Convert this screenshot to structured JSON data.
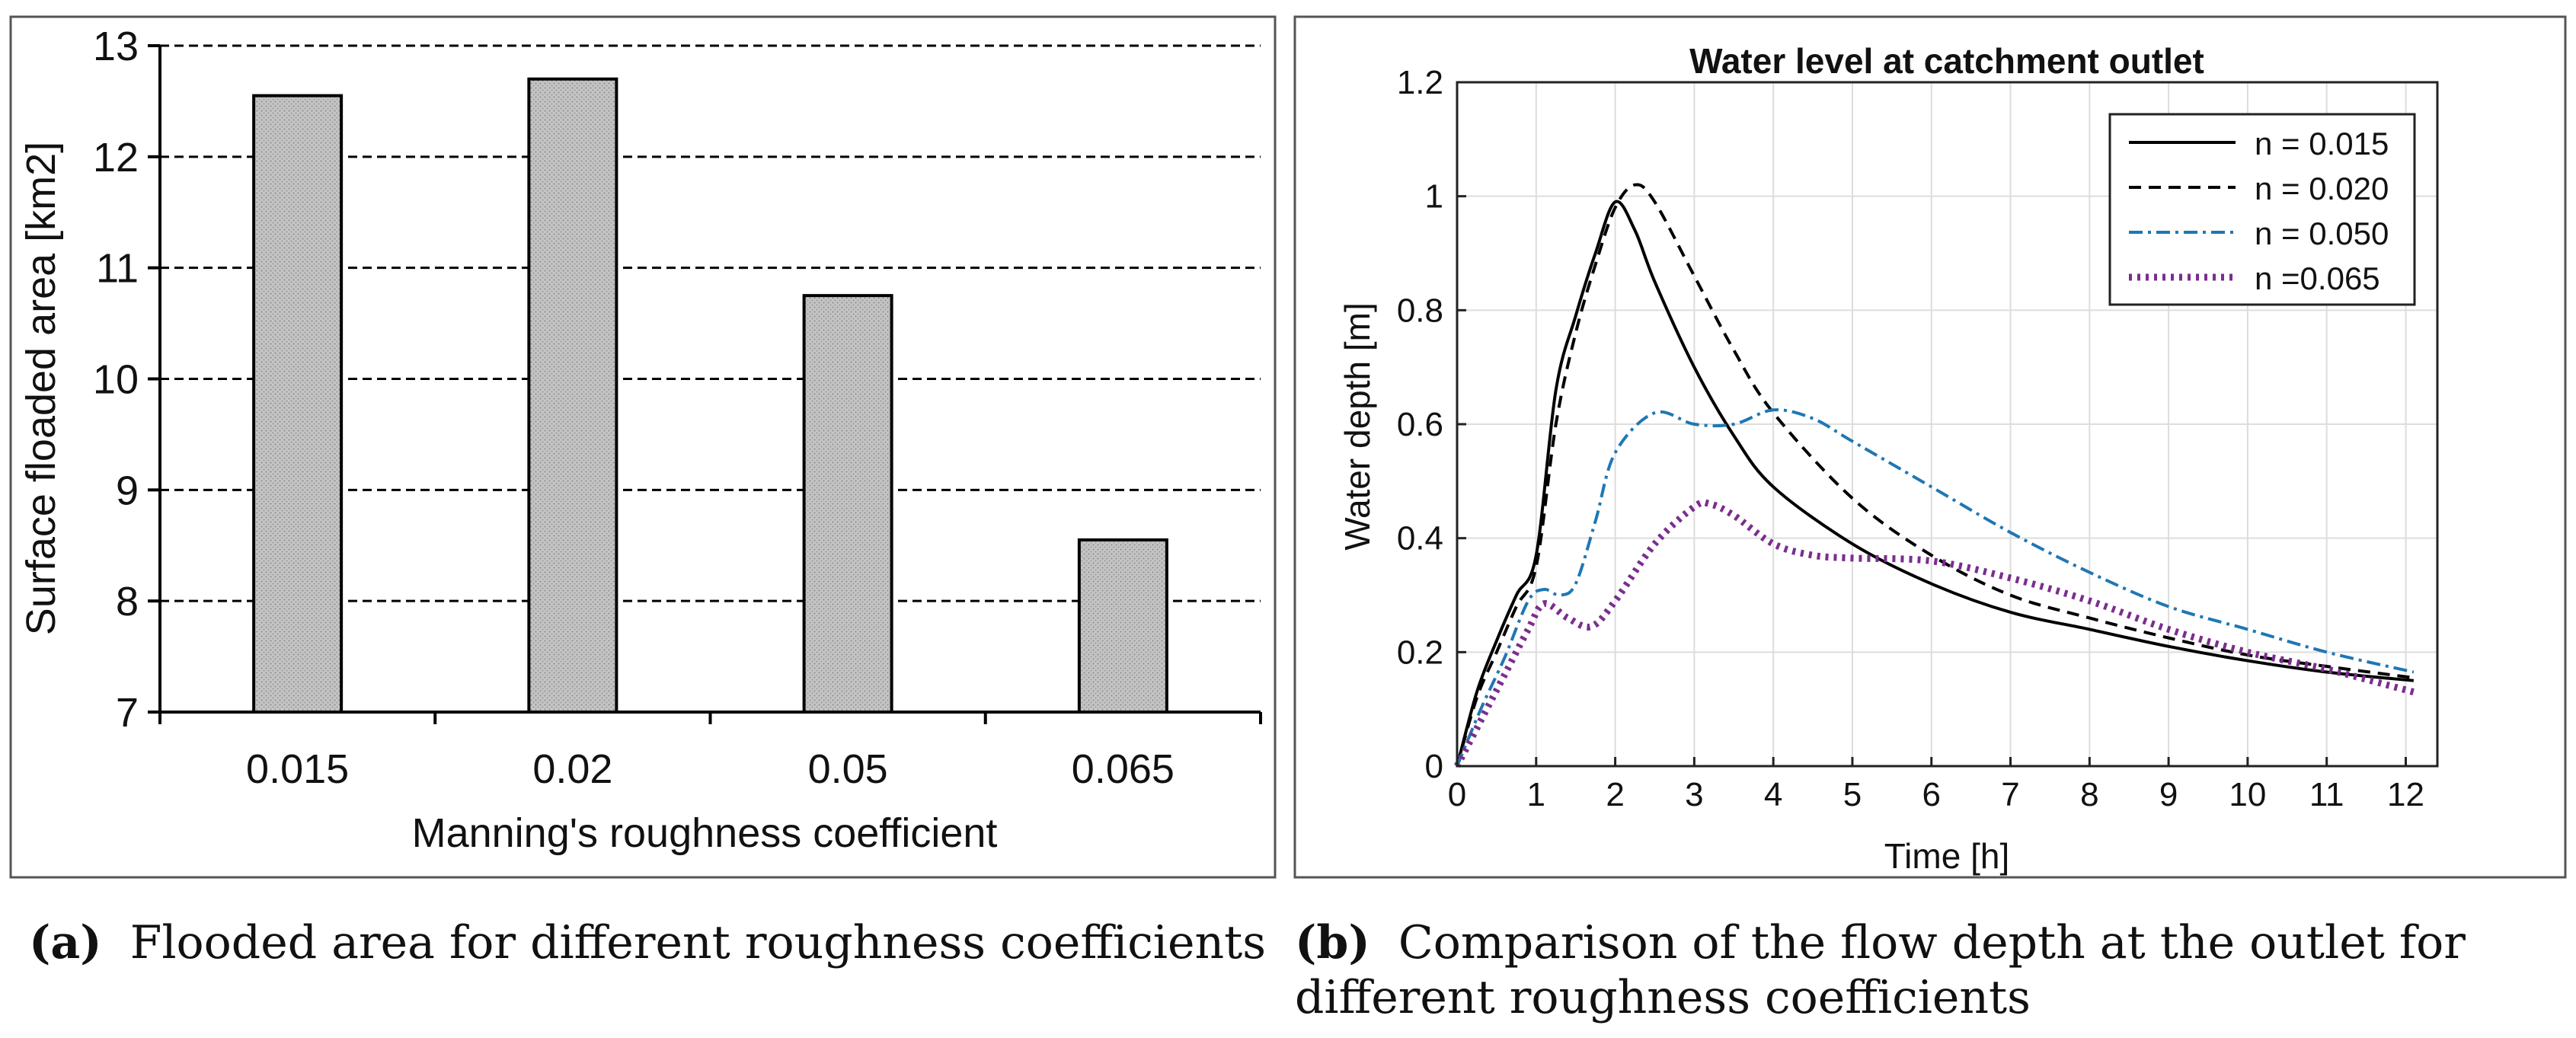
{
  "chart_data": [
    {
      "type": "bar",
      "title": "",
      "xlabel": "Manning's roughness coefficient",
      "ylabel": "Surface floaded area [km2]",
      "categories": [
        "0.015",
        "0.02",
        "0.05",
        "0.065"
      ],
      "values": [
        12.55,
        12.7,
        10.75,
        8.55
      ],
      "ylim": [
        7,
        13
      ],
      "yticks": [
        "7",
        "8",
        "9",
        "10",
        "11",
        "12",
        "13"
      ],
      "grid": "horizontal-dashed",
      "bar_color": "#bdbdbd"
    },
    {
      "type": "line",
      "title": "Water level at catchment outlet",
      "xlabel": "Time [h]",
      "ylabel": "Water depth [m]",
      "xlim": [
        0,
        12.4
      ],
      "ylim": [
        0,
        1.2
      ],
      "xticks": [
        "0",
        "1",
        "2",
        "3",
        "4",
        "5",
        "6",
        "7",
        "8",
        "9",
        "10",
        "11",
        "12"
      ],
      "yticks": [
        "0",
        "0.2",
        "0.4",
        "0.6",
        "0.8",
        "1",
        "1.2"
      ],
      "grid": "on",
      "legend_position": "top-right",
      "series": [
        {
          "name": "n = 0.015",
          "color": "#000000",
          "style": "solid",
          "x": [
            0,
            0.25,
            0.5,
            0.75,
            1.0,
            1.25,
            1.5,
            1.75,
            2.0,
            2.25,
            2.5,
            3.0,
            3.5,
            4.0,
            5.0,
            6.0,
            7.0,
            8.0,
            9.0,
            10.0,
            11.0,
            12.1
          ],
          "y": [
            0,
            0.13,
            0.22,
            0.3,
            0.37,
            0.66,
            0.79,
            0.9,
            0.99,
            0.94,
            0.85,
            0.7,
            0.58,
            0.49,
            0.39,
            0.32,
            0.27,
            0.24,
            0.21,
            0.185,
            0.165,
            0.15
          ]
        },
        {
          "name": "n = 0.020",
          "color": "#000000",
          "style": "dashed",
          "x": [
            0,
            0.25,
            0.5,
            0.75,
            1.0,
            1.25,
            1.5,
            1.75,
            2.0,
            2.25,
            2.5,
            3.0,
            3.5,
            4.0,
            5.0,
            6.0,
            7.0,
            8.0,
            9.0,
            10.0,
            11.0,
            12.1
          ],
          "y": [
            0,
            0.12,
            0.2,
            0.28,
            0.35,
            0.6,
            0.76,
            0.88,
            0.98,
            1.02,
            0.99,
            0.86,
            0.73,
            0.62,
            0.47,
            0.37,
            0.3,
            0.26,
            0.225,
            0.195,
            0.175,
            0.155
          ]
        },
        {
          "name": "n = 0.050",
          "color": "#1f77b4",
          "style": "dashdot",
          "x": [
            0,
            0.3,
            0.6,
            0.9,
            1.1,
            1.3,
            1.5,
            1.75,
            2.0,
            2.5,
            3.0,
            3.5,
            4.0,
            4.5,
            5.0,
            6.0,
            7.0,
            8.0,
            9.0,
            10.0,
            11.0,
            12.1
          ],
          "y": [
            0,
            0.1,
            0.19,
            0.29,
            0.31,
            0.3,
            0.32,
            0.43,
            0.55,
            0.62,
            0.6,
            0.6,
            0.625,
            0.61,
            0.57,
            0.49,
            0.41,
            0.34,
            0.28,
            0.24,
            0.2,
            0.165
          ]
        },
        {
          "name": "n =0.065",
          "color": "#7b2d8e",
          "style": "dotted",
          "x": [
            0,
            0.3,
            0.6,
            0.9,
            1.1,
            1.4,
            1.7,
            2.0,
            2.5,
            3.0,
            3.2,
            3.5,
            4.0,
            4.5,
            5.0,
            6.0,
            7.0,
            8.0,
            9.0,
            10.0,
            11.0,
            12.1
          ],
          "y": [
            0,
            0.08,
            0.16,
            0.24,
            0.285,
            0.26,
            0.245,
            0.29,
            0.39,
            0.455,
            0.46,
            0.44,
            0.39,
            0.37,
            0.365,
            0.36,
            0.33,
            0.29,
            0.24,
            0.2,
            0.17,
            0.13
          ]
        }
      ]
    }
  ],
  "captions": {
    "a": {
      "label": "(a)",
      "text": "Flooded area for different roughness coefficients"
    },
    "b": {
      "label": "(b)",
      "text_line1": "Comparison of the flow depth at the outlet for",
      "text_line2": "different roughness coefficients"
    }
  }
}
